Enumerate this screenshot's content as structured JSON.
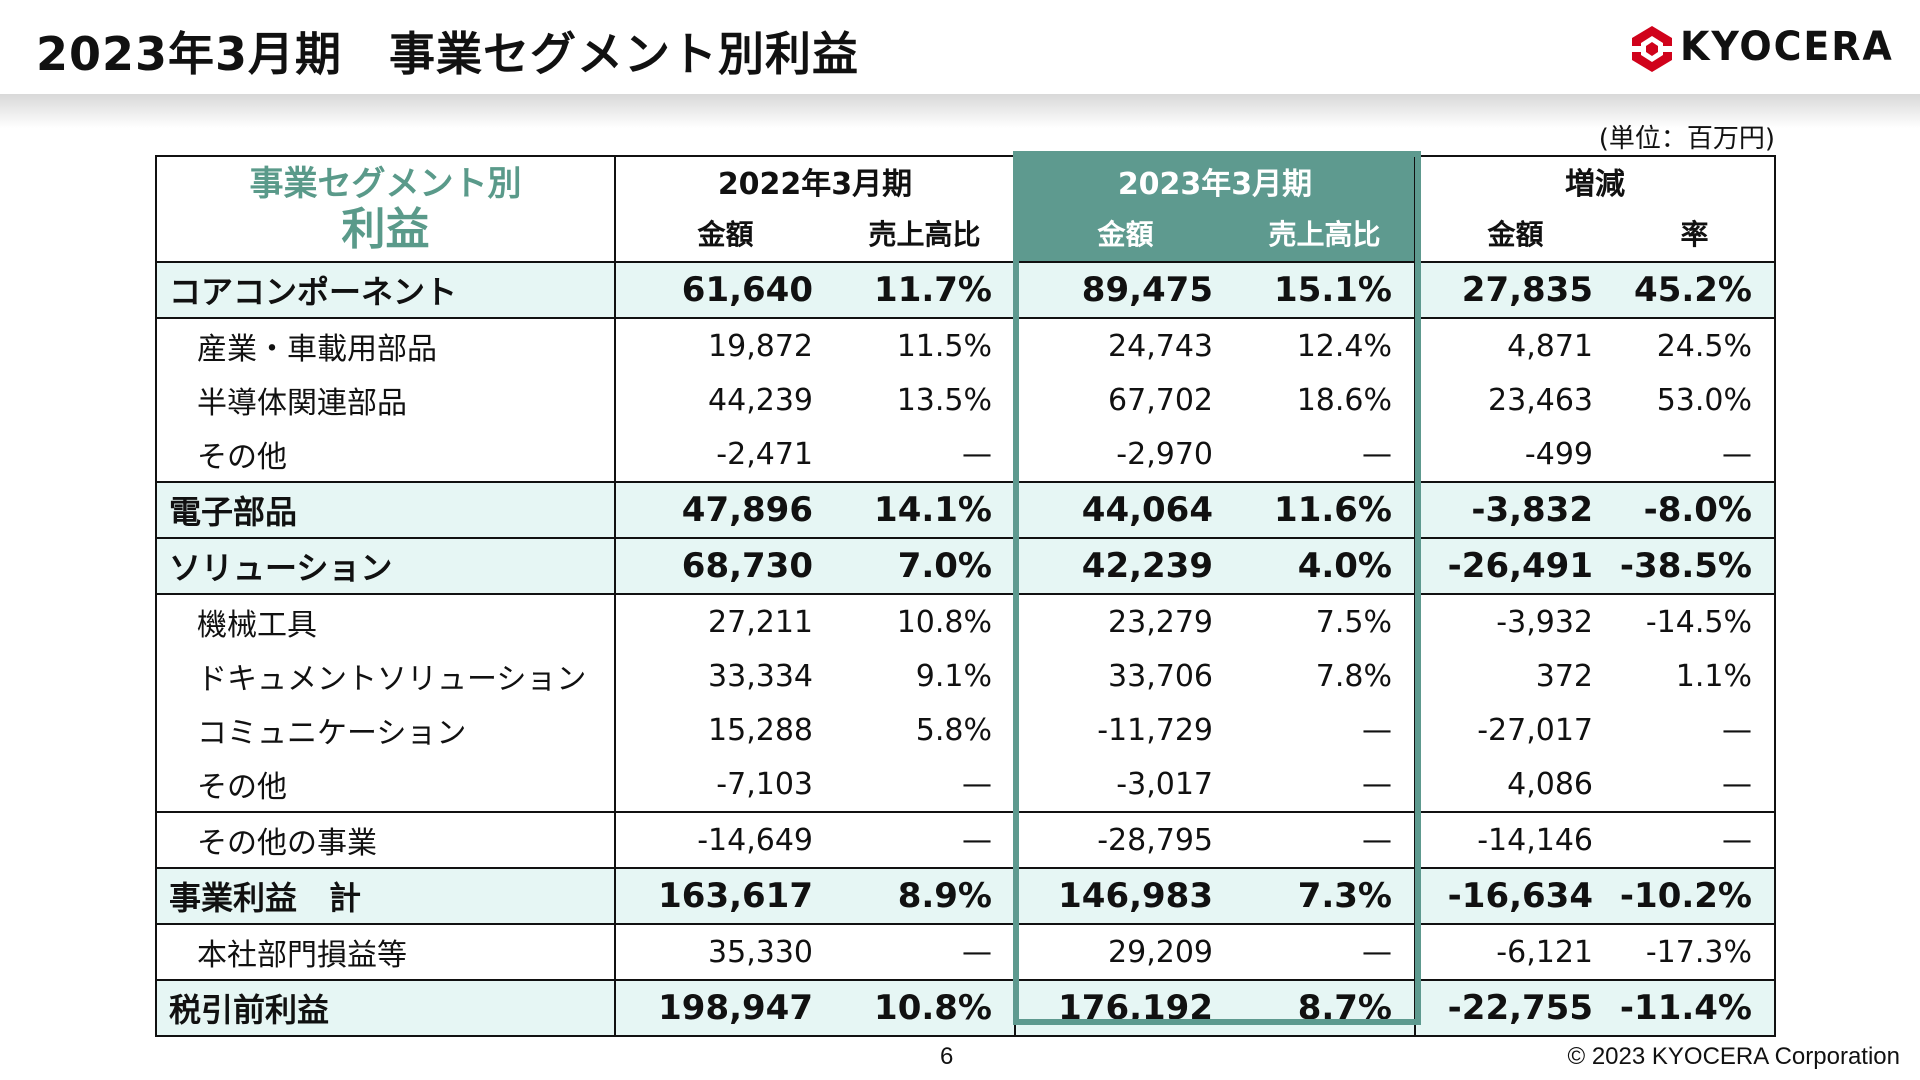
{
  "title": "2023年3月期　事業セグメント別利益",
  "logo_text": "KYOCERA",
  "unit": "(単位：百万円)",
  "header": {
    "title_line1": "事業セグメント別",
    "title_line2": "利益",
    "period1": "2022年3月期",
    "period2": "2023年3月期",
    "change": "増減",
    "amount": "金額",
    "ratio": "売上高比",
    "rate": "率"
  },
  "rows": [
    {
      "label": "コアコンポーネント",
      "v1": "61,640",
      "r1": "11.7%",
      "v2": "89,475",
      "r2": "15.1%",
      "d": "27,835",
      "dr": "45.2%"
    },
    {
      "label": "産業・車載用部品",
      "v1": "19,872",
      "r1": "11.5%",
      "v2": "24,743",
      "r2": "12.4%",
      "d": "4,871",
      "dr": "24.5%"
    },
    {
      "label": "半導体関連部品",
      "v1": "44,239",
      "r1": "13.5%",
      "v2": "67,702",
      "r2": "18.6%",
      "d": "23,463",
      "dr": "53.0%"
    },
    {
      "label": "その他",
      "v1": "-2,471",
      "r1": "—",
      "v2": "-2,970",
      "r2": "—",
      "d": "-499",
      "dr": "—"
    },
    {
      "label": "電子部品",
      "v1": "47,896",
      "r1": "14.1%",
      "v2": "44,064",
      "r2": "11.6%",
      "d": "-3,832",
      "dr": "-8.0%"
    },
    {
      "label": "ソリューション",
      "v1": "68,730",
      "r1": "7.0%",
      "v2": "42,239",
      "r2": "4.0%",
      "d": "-26,491",
      "dr": "-38.5%"
    },
    {
      "label": "機械工具",
      "v1": "27,211",
      "r1": "10.8%",
      "v2": "23,279",
      "r2": "7.5%",
      "d": "-3,932",
      "dr": "-14.5%"
    },
    {
      "label": "ドキュメントソリューション",
      "v1": "33,334",
      "r1": "9.1%",
      "v2": "33,706",
      "r2": "7.8%",
      "d": "372",
      "dr": "1.1%"
    },
    {
      "label": "コミュニケーション",
      "v1": "15,288",
      "r1": "5.8%",
      "v2": "-11,729",
      "r2": "—",
      "d": "-27,017",
      "dr": "—"
    },
    {
      "label": "その他",
      "v1": "-7,103",
      "r1": "—",
      "v2": "-3,017",
      "r2": "—",
      "d": "4,086",
      "dr": "—"
    },
    {
      "label": "その他の事業",
      "v1": "-14,649",
      "r1": "—",
      "v2": "-28,795",
      "r2": "—",
      "d": "-14,146",
      "dr": "—"
    },
    {
      "label": "事業利益　計",
      "v1": "163,617",
      "r1": "8.9%",
      "v2": "146,983",
      "r2": "7.3%",
      "d": "-16,634",
      "dr": "-10.2%"
    },
    {
      "label": "本社部門損益等",
      "v1": "35,330",
      "r1": "—",
      "v2": "29,209",
      "r2": "—",
      "d": "-6,121",
      "dr": "-17.3%"
    },
    {
      "label": "税引前利益",
      "v1": "198,947",
      "r1": "10.8%",
      "v2": "176,192",
      "r2": "8.7%",
      "d": "-22,755",
      "dr": "-11.4%"
    }
  ],
  "page_number": "6",
  "copyright": "© 2023 KYOCERA Corporation",
  "colors": {
    "accent": "#5e9a8f",
    "segment_bg": "#e6f6f4",
    "header_text": "#5a9a8a"
  }
}
